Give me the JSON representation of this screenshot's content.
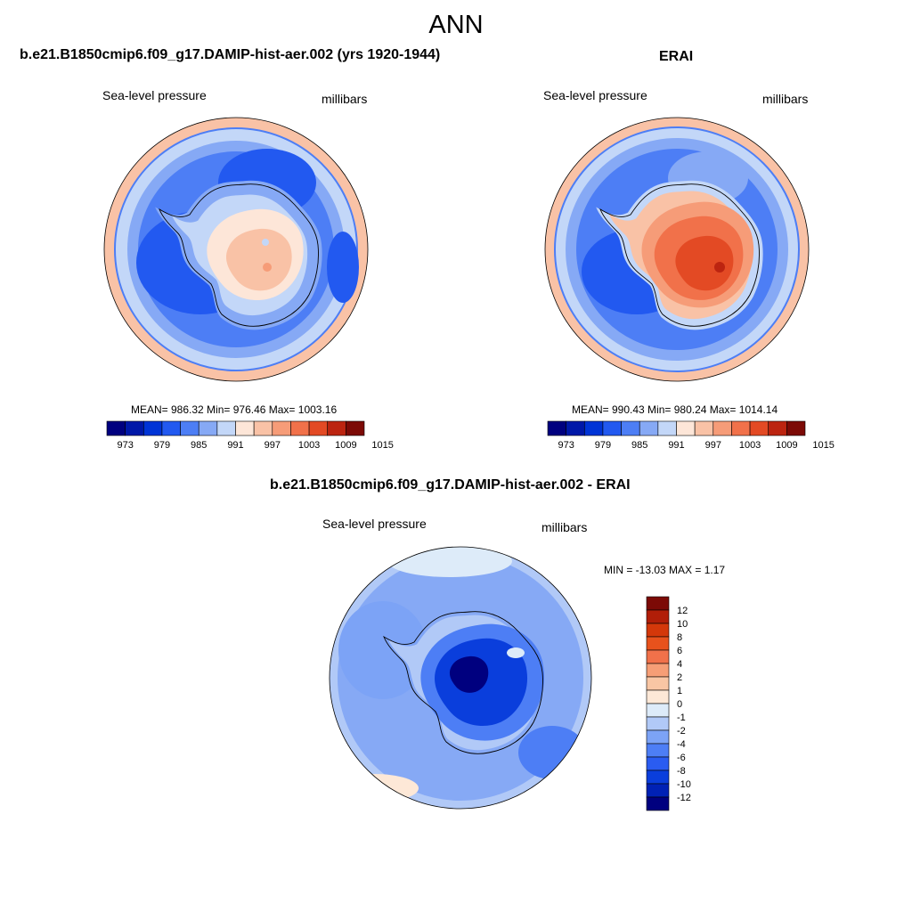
{
  "page_title": "ANN",
  "palette": {
    "sequential": [
      "#00007f",
      "#0018a8",
      "#0034d6",
      "#2259f0",
      "#4d7ef5",
      "#86a9f5",
      "#c3d7f8",
      "#fde6d8",
      "#f9c2a6",
      "#f69c78",
      "#f1714a",
      "#e34a24",
      "#bc2410",
      "#7c0a06"
    ],
    "difference": [
      "#00007f",
      "#0021b5",
      "#0a3edc",
      "#2a5cf1",
      "#4d7ef5",
      "#7ca3f6",
      "#b1c9f7",
      "#ddebf9",
      "#fde8d7",
      "#f9c6a4",
      "#f69e76",
      "#f1714a",
      "#e8521c",
      "#d4380a",
      "#b11e08",
      "#7c0a06"
    ]
  },
  "chart_data": [
    {
      "type": "heatmap",
      "title": "b.e21.B1850cmip6.f09_g17.DAMIP-hist-aer.002 (yrs 1920-1944)",
      "left_label": "Sea-level pressure",
      "right_label": "millibars",
      "projection": "south-polar-stereographic",
      "stats": {
        "mean": 986.32,
        "min": 976.46,
        "max": 1003.16
      },
      "stats_text": "MEAN= 986.32  Min= 976.46  Max= 1003.16",
      "colorbar": {
        "orientation": "horizontal",
        "levels": [
          973,
          976,
          979,
          982,
          985,
          988,
          991,
          994,
          997,
          1000,
          1003,
          1006,
          1009,
          1012,
          1015
        ],
        "tick_labels": [
          "973",
          "979",
          "985",
          "991",
          "997",
          "1003",
          "1009",
          "1015"
        ]
      }
    },
    {
      "type": "heatmap",
      "title": "ERAI",
      "left_label": "Sea-level pressure",
      "right_label": "millibars",
      "projection": "south-polar-stereographic",
      "stats": {
        "mean": 990.43,
        "min": 980.24,
        "max": 1014.14
      },
      "stats_text": "MEAN= 990.43  Min= 980.24  Max= 1014.14",
      "colorbar": {
        "orientation": "horizontal",
        "levels": [
          973,
          976,
          979,
          982,
          985,
          988,
          991,
          994,
          997,
          1000,
          1003,
          1006,
          1009,
          1012,
          1015
        ],
        "tick_labels": [
          "973",
          "979",
          "985",
          "991",
          "997",
          "1003",
          "1009",
          "1015"
        ]
      }
    },
    {
      "type": "heatmap",
      "title": "b.e21.B1850cmip6.f09_g17.DAMIP-hist-aer.002 - ERAI",
      "left_label": "Sea-level pressure",
      "right_label": "millibars",
      "projection": "south-polar-stereographic",
      "stats": {
        "min": -13.03,
        "max": 1.17
      },
      "stats_text": "MIN = -13.03 MAX =   1.17",
      "colorbar": {
        "orientation": "vertical",
        "tick_labels": [
          "12",
          "10",
          "8",
          "6",
          "4",
          "2",
          "1",
          "0",
          "-1",
          "-2",
          "-4",
          "-6",
          "-8",
          "-10",
          "-12"
        ]
      }
    }
  ]
}
